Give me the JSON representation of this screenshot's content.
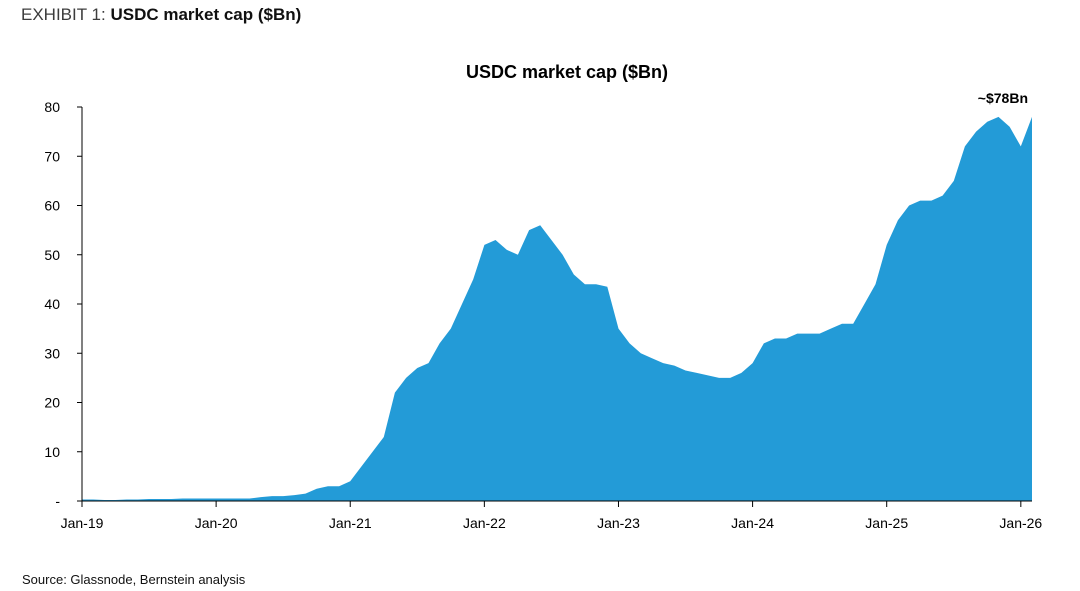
{
  "exhibit": {
    "label": "EXHIBIT 1:",
    "title": "USDC market cap ($Bn)"
  },
  "source": "Source: Glassnode, Bernstein analysis",
  "colors": {
    "area": "#239bd7",
    "axis": "#000000"
  },
  "chart_data": {
    "type": "area",
    "title": "USDC market cap ($Bn)",
    "xlabel": "",
    "ylabel": "",
    "ylim": [
      0,
      80
    ],
    "xlim": [
      "2019-01",
      "2026-02"
    ],
    "yticks": [
      0,
      10,
      20,
      30,
      40,
      50,
      60,
      70,
      80
    ],
    "ytick_labels": [
      "-",
      "10",
      "20",
      "30",
      "40",
      "50",
      "60",
      "70",
      "80"
    ],
    "xtick_labels": [
      "Jan-19",
      "Jan-20",
      "Jan-21",
      "Jan-22",
      "Jan-23",
      "Jan-24",
      "Jan-25",
      "Jan-26"
    ],
    "grid": false,
    "legend": "none",
    "annotation": {
      "text": "~$78Bn",
      "x": "2026-02",
      "y": 78
    },
    "series": [
      {
        "x": [
          "2019-01",
          "2019-02",
          "2019-03",
          "2019-04",
          "2019-05",
          "2019-06",
          "2019-07",
          "2019-08",
          "2019-09",
          "2019-10",
          "2019-11",
          "2019-12",
          "2020-01",
          "2020-02",
          "2020-03",
          "2020-04",
          "2020-05",
          "2020-06",
          "2020-07",
          "2020-08",
          "2020-09",
          "2020-10",
          "2020-11",
          "2020-12",
          "2021-01",
          "2021-02",
          "2021-03",
          "2021-04",
          "2021-05",
          "2021-06",
          "2021-07",
          "2021-08",
          "2021-09",
          "2021-10",
          "2021-11",
          "2021-12",
          "2022-01",
          "2022-02",
          "2022-03",
          "2022-04",
          "2022-05",
          "2022-06",
          "2022-07",
          "2022-08",
          "2022-09",
          "2022-10",
          "2022-11",
          "2022-12",
          "2023-01",
          "2023-02",
          "2023-03",
          "2023-04",
          "2023-05",
          "2023-06",
          "2023-07",
          "2023-08",
          "2023-09",
          "2023-10",
          "2023-11",
          "2023-12",
          "2024-01",
          "2024-02",
          "2024-03",
          "2024-04",
          "2024-05",
          "2024-06",
          "2024-07",
          "2024-08",
          "2024-09",
          "2024-10",
          "2024-11",
          "2024-12",
          "2025-01",
          "2025-02",
          "2025-03",
          "2025-04",
          "2025-05",
          "2025-06",
          "2025-07",
          "2025-08",
          "2025-09",
          "2025-10",
          "2025-11",
          "2025-12",
          "2026-01",
          "2026-02"
        ],
        "values": [
          0.3,
          0.3,
          0.2,
          0.2,
          0.3,
          0.3,
          0.4,
          0.4,
          0.4,
          0.5,
          0.5,
          0.5,
          0.5,
          0.5,
          0.5,
          0.5,
          0.8,
          1.0,
          1.0,
          1.2,
          1.5,
          2.5,
          3.0,
          3.0,
          4.0,
          7.0,
          10.0,
          13.0,
          22.0,
          25.0,
          27.0,
          28.0,
          32.0,
          35.0,
          40.0,
          45.0,
          52.0,
          53.0,
          51.0,
          50.0,
          55.0,
          56.0,
          53.0,
          50.0,
          46.0,
          44.0,
          44.0,
          43.5,
          35.0,
          32.0,
          30.0,
          29.0,
          28.0,
          27.5,
          26.5,
          26.0,
          25.5,
          25.0,
          25.0,
          26.0,
          28.0,
          32.0,
          33.0,
          33.0,
          34.0,
          34.0,
          34.0,
          35.0,
          36.0,
          36.0,
          40.0,
          44.0,
          52.0,
          57.0,
          60.0,
          61.0,
          61.0,
          62.0,
          65.0,
          72.0,
          75.0,
          77.0,
          78.0,
          76.0,
          72.0,
          78.0
        ]
      }
    ]
  }
}
